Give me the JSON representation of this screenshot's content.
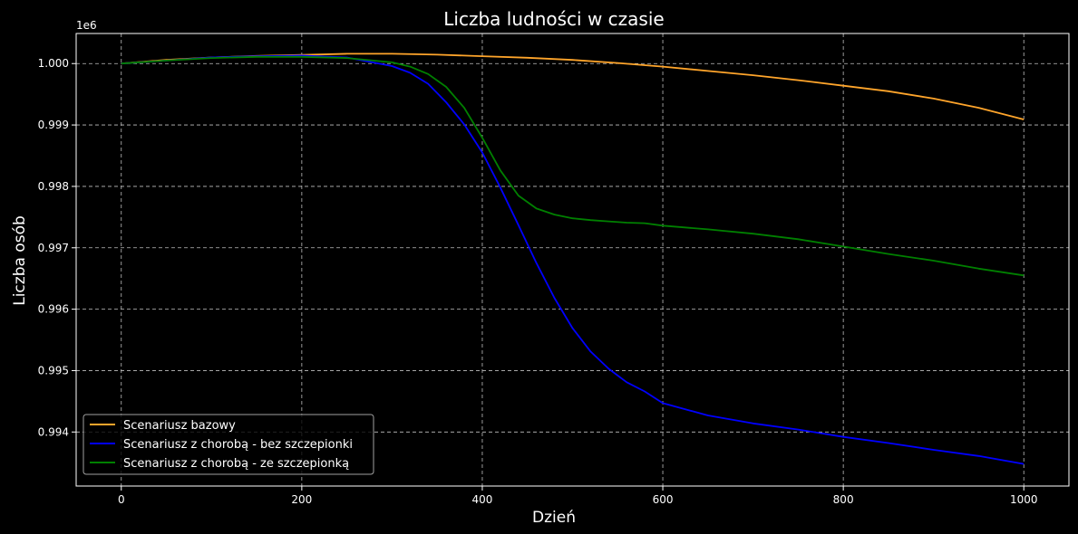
{
  "chart_data": {
    "type": "line",
    "title": "Liczba ludności w czasie",
    "xlabel": "Dzień",
    "ylabel": "Liczba osób",
    "offset_label": "1e6",
    "xlim": [
      -50,
      1050
    ],
    "ylim": [
      0.99312,
      1.00049
    ],
    "x_ticks": [
      0,
      200,
      400,
      600,
      800,
      1000
    ],
    "x_tick_labels": [
      "0",
      "200",
      "400",
      "600",
      "800",
      "1000"
    ],
    "y_ticks": [
      0.994,
      0.995,
      0.996,
      0.997,
      0.998,
      0.999,
      1.0
    ],
    "y_tick_labels": [
      "0.994",
      "0.995",
      "0.996",
      "0.997",
      "0.998",
      "0.999",
      "1.000"
    ],
    "grid": true,
    "legend_position": "lower left",
    "colors": {
      "background": "#000000",
      "axes": "#ffffff",
      "grid": "#bfbfbf"
    },
    "series": [
      {
        "name": "Scenariusz bazowy",
        "color": "#ffa52b",
        "x": [
          0,
          50,
          100,
          150,
          200,
          250,
          300,
          350,
          400,
          450,
          500,
          550,
          600,
          650,
          700,
          750,
          800,
          850,
          900,
          950,
          1000
        ],
        "y": [
          1.0,
          1.00006,
          1.0001,
          1.000125,
          1.00014,
          1.00016,
          1.00016,
          1.000145,
          1.00012,
          1.000095,
          1.00006,
          1.00001,
          0.99995,
          0.99988,
          0.99981,
          0.99973,
          0.99964,
          0.99955,
          0.99943,
          0.99928,
          0.99909
        ]
      },
      {
        "name": "Scenariusz z chorobą - bez szczepionki",
        "color": "#0000ff",
        "x": [
          0,
          50,
          100,
          150,
          200,
          250,
          300,
          320,
          340,
          360,
          380,
          400,
          420,
          440,
          460,
          480,
          500,
          520,
          540,
          560,
          580,
          600,
          650,
          700,
          750,
          800,
          850,
          900,
          950,
          1000
        ],
        "y": [
          1.0,
          1.00005,
          1.0001,
          1.00012,
          1.00013,
          1.0001,
          0.99996,
          0.99985,
          0.99967,
          0.99937,
          0.99901,
          0.99855,
          0.99798,
          0.99737,
          0.99675,
          0.99618,
          0.99569,
          0.99531,
          0.99503,
          0.99481,
          0.99466,
          0.99447,
          0.99427,
          0.99414,
          0.99404,
          0.99392,
          0.99382,
          0.99371,
          0.99361,
          0.99348
        ]
      },
      {
        "name": "Scenariusz z chorobą - ze szczepionką",
        "color": "#008000",
        "x": [
          0,
          50,
          100,
          150,
          200,
          250,
          300,
          320,
          340,
          360,
          380,
          400,
          420,
          440,
          460,
          480,
          500,
          520,
          540,
          560,
          580,
          600,
          650,
          700,
          750,
          800,
          850,
          900,
          950,
          1000
        ],
        "y": [
          1.0,
          1.00005,
          1.00009,
          1.00011,
          1.00011,
          1.00009,
          1.00002,
          0.99995,
          0.99983,
          0.99962,
          0.99928,
          0.99879,
          0.99826,
          0.99785,
          0.99764,
          0.99754,
          0.99748,
          0.99745,
          0.99743,
          0.99741,
          0.9974,
          0.99736,
          0.9973,
          0.99723,
          0.99714,
          0.99702,
          0.9969,
          0.99679,
          0.99666,
          0.99655
        ]
      }
    ]
  }
}
